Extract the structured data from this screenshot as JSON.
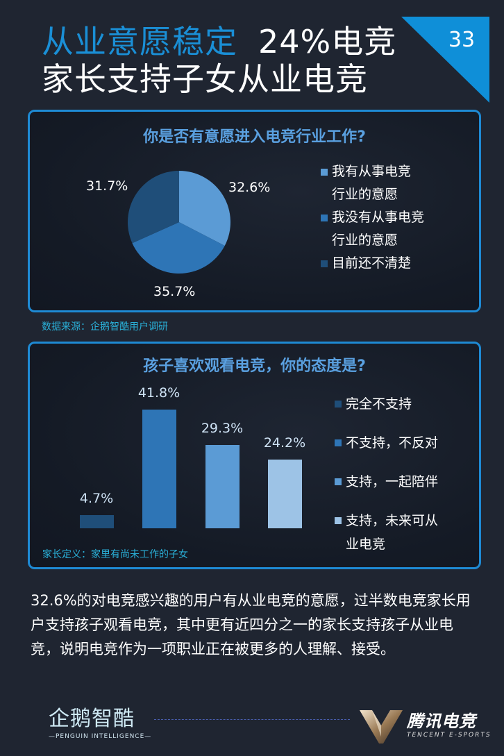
{
  "header": {
    "title_accent": "从业意愿稳定",
    "title_rest": "24%电竞",
    "title_line2": "家长支持子女从业电竞",
    "page_number": "33",
    "accent_color": "#1a8fd6",
    "badge_color": "#0f8fd8"
  },
  "panel1": {
    "title": "你是否有意愿进入电竞行业工作?",
    "legend": [
      {
        "label": "我有从事电竞\n行业的意愿",
        "color": "#5b9bd5"
      },
      {
        "label": "我没有从事电竞\n行业的意愿",
        "color": "#2e75b6"
      },
      {
        "label": "目前还不清楚",
        "color": "#1f4e79"
      }
    ],
    "labels": [
      "32.6%",
      "35.7%",
      "31.7%"
    ],
    "source": "数据来源：企鹅智酷用户调研"
  },
  "panel2": {
    "title": "孩子喜欢观看电竞，你的态度是?",
    "legend": [
      {
        "label": "完全不支持",
        "color": "#1f4e79"
      },
      {
        "label": "不支持，不反对",
        "color": "#2e75b6"
      },
      {
        "label": "支持，一起陪伴",
        "color": "#5b9bd5"
      },
      {
        "label": "支持，未来可从\n业电竞",
        "color": "#9dc3e6"
      }
    ],
    "labels": [
      "4.7%",
      "41.8%",
      "29.3%",
      "24.2%"
    ],
    "note": "家长定义：家里有尚未工作的子女"
  },
  "chart_data": [
    {
      "type": "pie",
      "title": "你是否有意愿进入电竞行业工作?",
      "categories": [
        "我有从事电竞行业的意愿",
        "我没有从事电竞行业的意愿",
        "目前还不清楚"
      ],
      "values": [
        32.6,
        35.7,
        31.7
      ],
      "colors": [
        "#5b9bd5",
        "#2e75b6",
        "#1f4e79"
      ],
      "legend_position": "right",
      "source": "数据来源：企鹅智酷用户调研"
    },
    {
      "type": "bar",
      "title": "孩子喜欢观看电竞，你的态度是?",
      "categories": [
        "完全不支持",
        "不支持，不反对",
        "支持，一起陪伴",
        "支持，未来可从业电竞"
      ],
      "values": [
        4.7,
        41.8,
        29.3,
        24.2
      ],
      "colors": [
        "#1f4e79",
        "#2e75b6",
        "#5b9bd5",
        "#9dc3e6"
      ],
      "xlabel": "",
      "ylabel": "",
      "ylim": [
        0,
        45
      ],
      "grid": false,
      "legend_position": "right",
      "note": "家长定义：家里有尚未工作的子女"
    }
  ],
  "summary": "32.6%的对电竞感兴趣的用户有从业电竞的意愿，过半数电竞家长用户支持孩子观看电竞，其中更有近四分之一的家长支持孩子从业电竞，说明电竞作为一项职业正在被更多的人理解、接受。",
  "footer": {
    "left_logo_cn": "企鹅智酷",
    "left_logo_en": "—PENGUIN INTELLIGENCE—",
    "right_logo_cn": "腾讯电竞",
    "right_logo_en": "TENCENT E-SPORTS"
  }
}
